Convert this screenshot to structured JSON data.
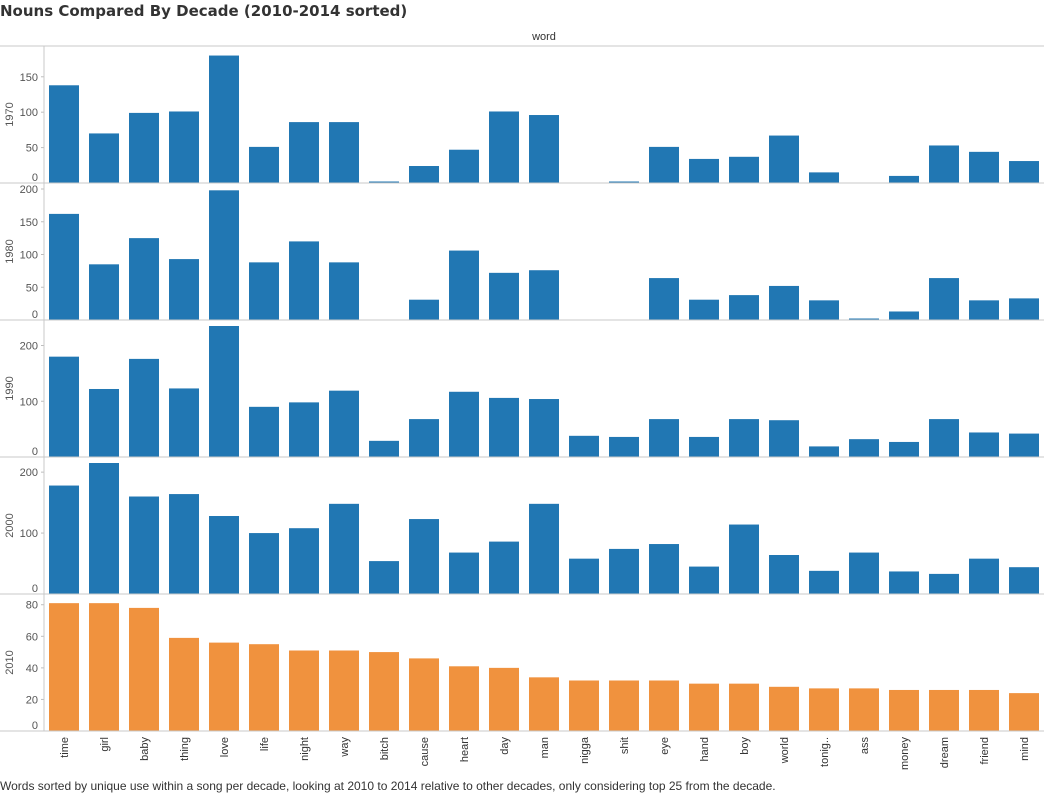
{
  "title": "Nouns Compared By Decade (2010-2014 sorted)",
  "caption": "Words sorted by unique use within a song per decade, looking at 2010 to 2014 relative to other decades, only considering top 25 from the decade.",
  "colors": {
    "other_decades": "#2177b3",
    "decade_2010": "#f0923e",
    "gridline": "#d4d4d4"
  },
  "chart_data": {
    "type": "bar",
    "title": "Nouns Compared By Decade (2010-2014 sorted)",
    "column_header": "word",
    "categories": [
      "time",
      "girl",
      "baby",
      "thing",
      "love",
      "life",
      "night",
      "way",
      "bitch",
      "cause",
      "heart",
      "day",
      "man",
      "nigga",
      "shit",
      "eye",
      "hand",
      "boy",
      "world",
      "tonig..",
      "ass",
      "money",
      "dream",
      "friend",
      "mind"
    ],
    "series": [
      {
        "name": "1970",
        "ylim": [
          0,
          185
        ],
        "ticks": [
          0,
          50,
          100,
          150
        ],
        "values": [
          138,
          70,
          99,
          101,
          180,
          51,
          86,
          86,
          1,
          24,
          47,
          101,
          96,
          0,
          1,
          51,
          34,
          37,
          67,
          15,
          0,
          10,
          53,
          44,
          31
        ]
      },
      {
        "name": "1980",
        "ylim": [
          0,
          200
        ],
        "ticks": [
          0,
          50,
          100,
          150,
          200
        ],
        "values": [
          162,
          85,
          125,
          93,
          198,
          88,
          120,
          88,
          0,
          31,
          106,
          72,
          76,
          0,
          0,
          64,
          31,
          38,
          52,
          30,
          2,
          13,
          64,
          30,
          33
        ]
      },
      {
        "name": "1990",
        "ylim": [
          0,
          235
        ],
        "ticks": [
          0,
          100,
          200
        ],
        "values": [
          180,
          122,
          176,
          123,
          235,
          90,
          98,
          119,
          29,
          68,
          117,
          106,
          104,
          38,
          36,
          68,
          36,
          68,
          66,
          19,
          32,
          27,
          68,
          44,
          42
        ]
      },
      {
        "name": "2000",
        "ylim": [
          0,
          215
        ],
        "ticks": [
          0,
          100,
          200
        ],
        "values": [
          178,
          215,
          160,
          164,
          128,
          100,
          108,
          148,
          54,
          123,
          68,
          86,
          148,
          58,
          74,
          82,
          45,
          114,
          64,
          38,
          68,
          37,
          33,
          58,
          44
        ]
      },
      {
        "name": "2010",
        "ylim": [
          0,
          83
        ],
        "ticks": [
          0,
          20,
          40,
          60,
          80
        ],
        "values": [
          81,
          81,
          78,
          59,
          56,
          55,
          51,
          51,
          50,
          46,
          41,
          40,
          34,
          32,
          32,
          32,
          30,
          30,
          28,
          27,
          27,
          26,
          26,
          26,
          24
        ]
      }
    ]
  }
}
